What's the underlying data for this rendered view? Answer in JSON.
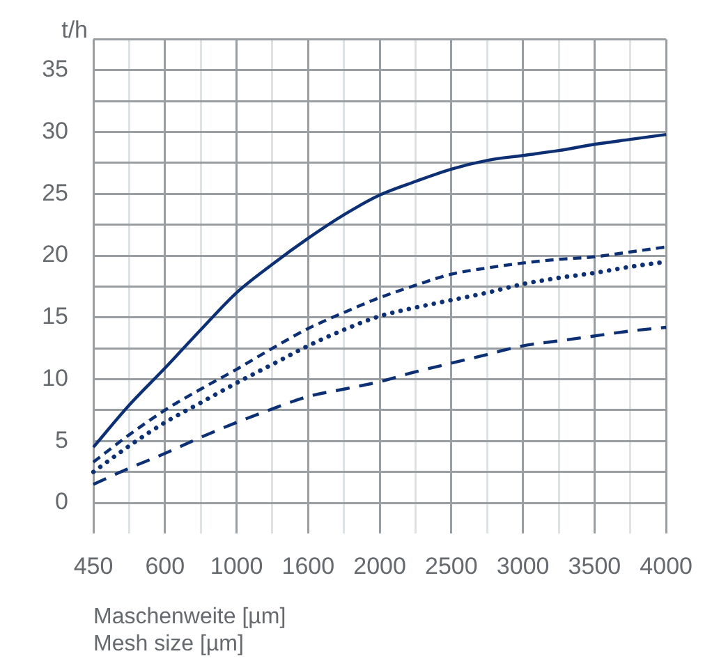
{
  "chart_data": {
    "type": "line",
    "ylabel": "t/h",
    "xlabel": "Maschenweite [µm]\nMesh size [µm]",
    "categories": [
      "450",
      null,
      "600",
      null,
      "1000",
      null,
      "1600",
      null,
      "2000",
      null,
      "2500",
      null,
      "3000",
      null,
      "3500",
      null,
      "4000"
    ],
    "ylim": [
      -2.5,
      37.5
    ],
    "yticks": [
      0,
      {
        "value": 2.5,
        "label": null
      },
      5,
      {
        "value": 7.5,
        "label": null
      },
      10,
      {
        "value": 12.5,
        "label": null
      },
      15,
      {
        "value": 17.5,
        "label": null
      },
      20,
      {
        "value": 22.5,
        "label": null
      },
      25,
      {
        "value": 27.5,
        "label": null
      },
      30,
      {
        "value": 32.5,
        "label": null
      },
      35,
      {
        "value": 37.5,
        "label": null
      }
    ],
    "grid": true,
    "legend": false,
    "marker": "none",
    "series": [
      {
        "color": "#0d2f73",
        "line_style": "solid",
        "values": [
          4.5,
          7.9,
          10.9,
          14.0,
          17.0,
          19.3,
          21.4,
          23.3,
          24.9,
          26.0,
          27.0,
          27.7,
          28.1,
          28.5,
          29.0,
          29.4,
          29.8
        ]
      },
      {
        "color": "#0d2f73",
        "line_style": "dashed",
        "values": [
          3.3,
          5.5,
          7.5,
          9.2,
          10.8,
          12.5,
          14.1,
          15.4,
          16.6,
          17.6,
          18.5,
          19.0,
          19.4,
          19.7,
          19.9,
          20.3,
          20.7
        ]
      },
      {
        "color": "#0d2f73",
        "line_style": "dotted",
        "values": [
          2.5,
          4.6,
          6.5,
          8.1,
          9.7,
          11.2,
          12.7,
          14.0,
          15.1,
          15.8,
          16.4,
          17.0,
          17.7,
          18.2,
          18.6,
          19.1,
          19.5
        ]
      },
      {
        "color": "#0d2f73",
        "line_style": "dashed",
        "values": [
          1.5,
          2.8,
          4.0,
          5.3,
          6.5,
          7.6,
          8.6,
          9.2,
          9.8,
          10.6,
          11.3,
          12.0,
          12.7,
          13.1,
          13.5,
          13.9,
          14.2
        ]
      }
    ]
  }
}
